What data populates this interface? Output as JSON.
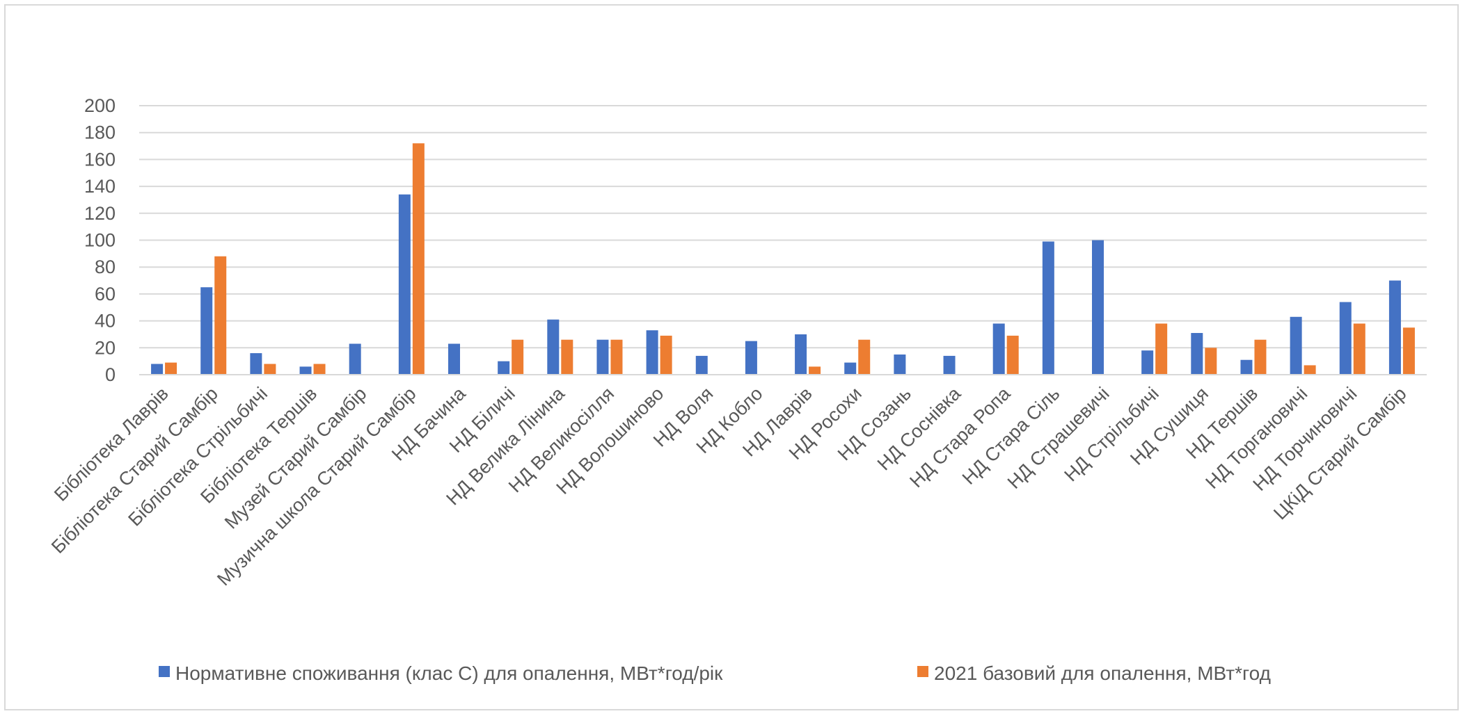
{
  "chart_data": {
    "type": "bar",
    "categories": [
      "Бібліотека Лаврів",
      "Бібліотека Старий Самбір",
      "Бібліотека Стрільбичі",
      "Бібліотека Тершів",
      "Музей Старий Самбір",
      "Музична школа Старий Самбір",
      "НД Бачина",
      "НД Біличі",
      "НД Велика Лінина",
      "НД Великосілля",
      "НД Волошиново",
      "НД Воля",
      "НД Кобло",
      "НД Лаврів",
      "НД Росохи",
      "НД Созань",
      "НД Соснівка",
      "НД Стара Ропа",
      "НД Стара Сіль",
      "НД Страшевичі",
      "НД Стрільбичі",
      "НД Сушиця",
      "НД Тершів",
      "НД Торгановичі",
      "НД Торчиновичі",
      "ЦКіД Старий Самбір"
    ],
    "series": [
      {
        "name": "Нормативне споживання (клас С) для опалення, МВт*год/рік",
        "color": "#4472c4",
        "values": [
          8,
          65,
          16,
          6,
          23,
          134,
          23,
          10,
          41,
          26,
          33,
          14,
          25,
          30,
          9,
          15,
          14,
          38,
          99,
          100,
          18,
          31,
          11,
          43,
          54,
          70
        ]
      },
      {
        "name": "2021 базовий для опалення, МВт*год",
        "color": "#ed7d31",
        "values": [
          9,
          88,
          8,
          8,
          0,
          172,
          0,
          26,
          26,
          26,
          29,
          0,
          0,
          6,
          26,
          0,
          0,
          29,
          0,
          0,
          38,
          20,
          26,
          7,
          38,
          35
        ]
      }
    ],
    "yticks": [
      "0",
      "20",
      "40",
      "60",
      "80",
      "100",
      "120",
      "140",
      "160",
      "180",
      "200"
    ],
    "ylim": [
      0,
      200
    ],
    "grid": true,
    "legend_position": "bottom",
    "title": "",
    "xlabel": "",
    "ylabel": ""
  }
}
